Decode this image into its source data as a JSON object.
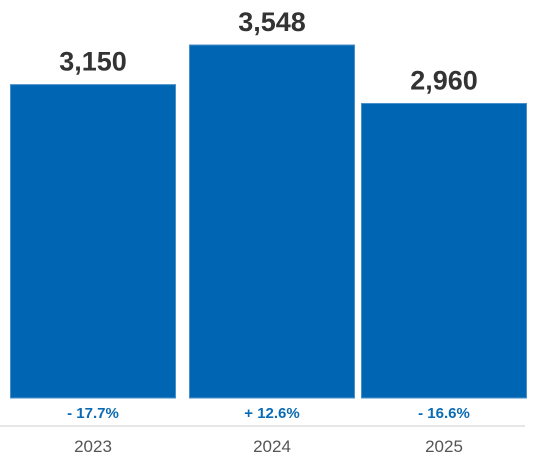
{
  "chart_data": {
    "type": "bar",
    "categories": [
      "2023",
      "2024",
      "2025"
    ],
    "values": [
      3150,
      3548,
      2960
    ],
    "value_labels": [
      "3,150",
      "3,548",
      "2,960"
    ],
    "change_labels": [
      "- 17.7%",
      "+ 12.6%",
      "- 16.6%"
    ],
    "title": "",
    "xlabel": "",
    "ylabel": "",
    "ylim": [
      0,
      3548
    ],
    "grid": false,
    "legend": "none",
    "colors": {
      "bar": "#0066b3",
      "bar_edge": "#4a90c8",
      "value_text": "#333333",
      "change_text": "#0a6bb5",
      "tick_text": "#555555",
      "axis": "#cccccc"
    }
  }
}
